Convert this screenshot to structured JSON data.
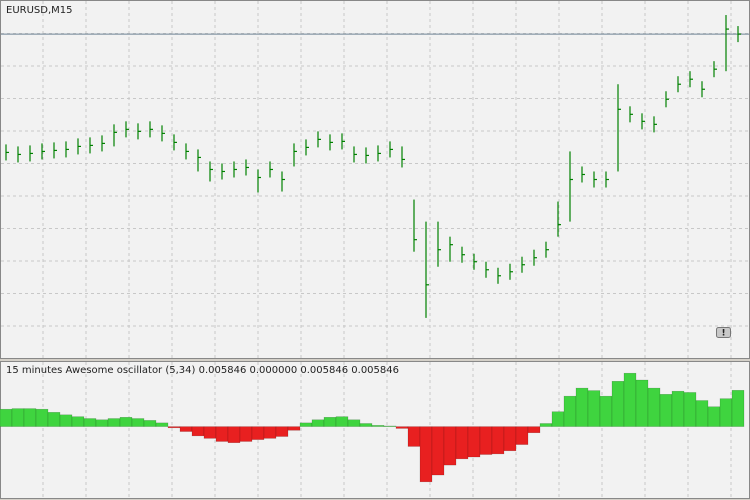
{
  "chart_data": [
    {
      "type": "ohlc",
      "title": "EURUSD,M15",
      "badge": "!",
      "color": "#008000",
      "price_line_color": "#6f8496",
      "grid": true,
      "ylim": [
        1.2694,
        1.305
      ],
      "series": [
        {
          "name": "high",
          "values": [
            1.2907,
            1.2905,
            1.2906,
            1.2908,
            1.2909,
            1.291,
            1.2913,
            1.2914,
            1.2916,
            1.2927,
            1.293,
            1.2928,
            1.293,
            1.2926,
            1.2917,
            1.2908,
            1.2902,
            1.289,
            1.2888,
            1.289,
            1.2892,
            1.2882,
            1.289,
            1.288,
            1.2908,
            1.2912,
            1.292,
            1.2917,
            1.2918,
            1.2905,
            1.2904,
            1.2906,
            1.291,
            1.2905,
            1.2852,
            1.283,
            1.283,
            1.2815,
            1.2805,
            1.2798,
            1.279,
            1.2784,
            1.2788,
            1.2795,
            1.2802,
            1.281,
            1.285,
            1.29,
            1.2885,
            1.288,
            1.288,
            1.2967,
            1.2945,
            1.2938,
            1.2935,
            1.296,
            1.2975,
            1.298,
            1.297,
            1.299,
            1.3036,
            1.3025
          ]
        },
        {
          "name": "low",
          "values": [
            1.2891,
            1.2889,
            1.289,
            1.2892,
            1.2893,
            1.2894,
            1.2897,
            1.2898,
            1.29,
            1.2905,
            1.2914,
            1.2912,
            1.2914,
            1.291,
            1.2901,
            1.2892,
            1.288,
            1.287,
            1.2872,
            1.2874,
            1.2876,
            1.2859,
            1.2874,
            1.286,
            1.2885,
            1.2896,
            1.2904,
            1.2901,
            1.2902,
            1.2889,
            1.2888,
            1.289,
            1.2894,
            1.2884,
            1.28,
            1.2734,
            1.2785,
            1.279,
            1.2789,
            1.2782,
            1.2774,
            1.2768,
            1.2772,
            1.2779,
            1.2786,
            1.2794,
            1.2815,
            1.283,
            1.2869,
            1.2864,
            1.2864,
            1.288,
            1.2929,
            1.2922,
            1.2919,
            1.2944,
            1.2959,
            1.2964,
            1.2954,
            1.2974,
            1.298,
            1.3009
          ]
        },
        {
          "name": "close",
          "values": [
            1.2899,
            1.2897,
            1.2898,
            1.29,
            1.2901,
            1.2902,
            1.2905,
            1.2906,
            1.2908,
            1.2919,
            1.2922,
            1.292,
            1.2922,
            1.2918,
            1.2909,
            1.29,
            1.2894,
            1.2882,
            1.288,
            1.2882,
            1.2884,
            1.2874,
            1.2882,
            1.2872,
            1.29,
            1.2904,
            1.2912,
            1.2909,
            1.291,
            1.2897,
            1.2896,
            1.2898,
            1.2902,
            1.2892,
            1.2812,
            1.2767,
            1.2802,
            1.2807,
            1.2797,
            1.279,
            1.2782,
            1.2776,
            1.278,
            1.2787,
            1.2794,
            1.2802,
            1.2827,
            1.2872,
            1.2877,
            1.2872,
            1.2872,
            1.2942,
            1.2937,
            1.293,
            1.2927,
            1.2952,
            1.2967,
            1.2972,
            1.2962,
            1.2982,
            1.3022,
            1.3017
          ]
        }
      ]
    },
    {
      "type": "bar",
      "title": "15 minutes Awesome oscillator (5,34) 0.005846 0.000000 0.005846 0.005846",
      "up_color": "#3fd43f",
      "down_color": "#e82020",
      "grid": true,
      "ylim": [
        -0.0115,
        0.0104
      ],
      "values": [
        0.0028,
        0.0029,
        0.0029,
        0.0028,
        0.0023,
        0.0019,
        0.0016,
        0.0013,
        0.0011,
        0.0013,
        0.0015,
        0.0013,
        0.001,
        0.0006,
        -0.0002,
        -0.0008,
        -0.0015,
        -0.0019,
        -0.0024,
        -0.0026,
        -0.0024,
        -0.0021,
        -0.0019,
        -0.0016,
        -0.0006,
        0.0006,
        0.0011,
        0.0015,
        0.0016,
        0.0011,
        0.0005,
        0.0002,
        0.0001,
        -0.0003,
        -0.0032,
        -0.0089,
        -0.0078,
        -0.0062,
        -0.0052,
        -0.0049,
        -0.0045,
        -0.0044,
        -0.0039,
        -0.0029,
        -0.001,
        0.0005,
        0.0024,
        0.0049,
        0.0062,
        0.0058,
        0.0049,
        0.0073,
        0.0086,
        0.0075,
        0.0062,
        0.0052,
        0.0057,
        0.0055,
        0.0042,
        0.0032,
        0.0045,
        0.005846
      ]
    }
  ]
}
